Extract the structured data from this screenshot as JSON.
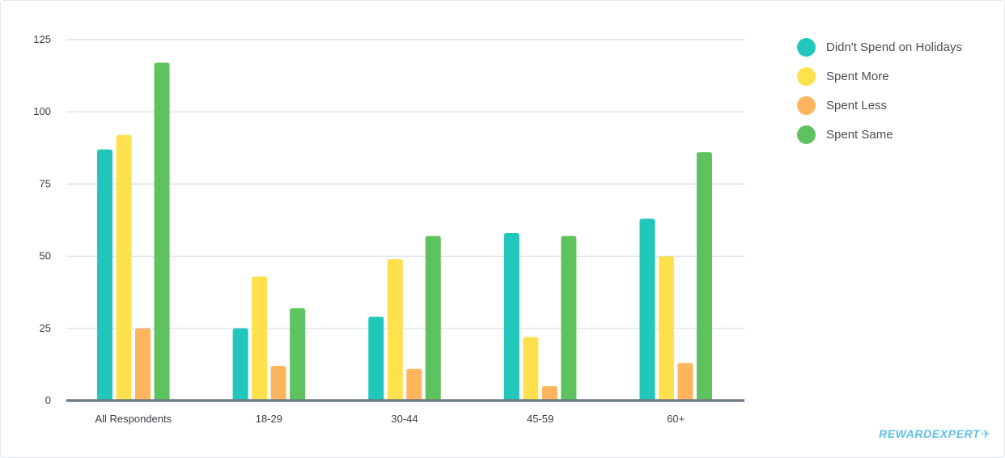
{
  "chart_data": {
    "type": "bar",
    "categories": [
      "All Respondents",
      "18-29",
      "30-44",
      "45-59",
      "60+"
    ],
    "series": [
      {
        "name": "Didn't Spend on Holidays",
        "color": "#22c7bb",
        "values": [
          87,
          25,
          29,
          58,
          63
        ]
      },
      {
        "name": "Spent More",
        "color": "#ffe14d",
        "values": [
          92,
          43,
          49,
          22,
          50
        ]
      },
      {
        "name": "Spent Less",
        "color": "#ffb55e",
        "values": [
          25,
          12,
          11,
          5,
          13
        ]
      },
      {
        "name": "Spent Same",
        "color": "#5ec35e",
        "values": [
          117,
          32,
          57,
          57,
          86
        ]
      }
    ],
    "ylim": [
      0,
      125
    ],
    "yticks": [
      0,
      25,
      50,
      75,
      100,
      125
    ],
    "grid": true,
    "legend_position": "right",
    "xlabel": "",
    "ylabel": ""
  },
  "brand": {
    "name": "REWARDEXPERT",
    "icon": "airplane-icon"
  }
}
